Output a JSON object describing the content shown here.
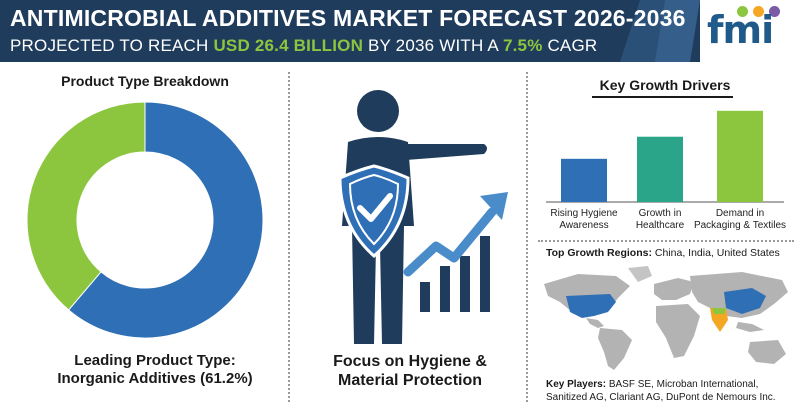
{
  "header": {
    "title": "ANTIMICROBIAL ADDITIVES MARKET FORECAST 2026-2036",
    "subtitle_prefix": "PROJECTED TO REACH ",
    "subtitle_value": "USD 26.4 BILLION",
    "subtitle_mid": " BY 2036 WITH A ",
    "subtitle_rate": "7.5%",
    "subtitle_suffix": " CAGR"
  },
  "logo": {
    "text": "fmi"
  },
  "left_panel": {
    "heading": "Product Type Breakdown",
    "caption_line1": "Leading Product Type:",
    "caption_line2": "Inorganic Additives (61.2%)"
  },
  "center_panel": {
    "caption_line1": "Focus on Hygiene &",
    "caption_line2": "Material Protection"
  },
  "right_panel": {
    "heading": "Key Growth Drivers",
    "regions_label": "Top Growth Regions:",
    "regions_value": " China, India, United States",
    "players_label": "Key Players:",
    "players_value": " BASF SE, Microban International, Sanitized AG, Clariant AG, DuPont de Nemours Inc."
  },
  "colors": {
    "header_bg": "#1f3c5c",
    "highlight_green": "#8cc63f",
    "donut_blue": "#2f6fb5",
    "donut_green": "#8cc63f",
    "bar_blue": "#2f6fb5",
    "bar_teal": "#2aa58a",
    "bar_green": "#8cc63f",
    "figure_navy": "#1f3c5c"
  },
  "chart_data": [
    {
      "type": "pie",
      "title": "Product Type Breakdown",
      "slices": [
        {
          "name": "Inorganic Additives",
          "value": 61.2,
          "color": "#2f6fb5"
        },
        {
          "name": "",
          "value": 38.8,
          "color": "#8cc63f"
        }
      ]
    },
    {
      "type": "bar",
      "title": "Key Growth Drivers",
      "categories": [
        "Rising Hygiene Awareness",
        "Growth in Healthcare",
        "Demand in Packaging & Textiles"
      ],
      "category_lines": [
        [
          "Rising Hygiene",
          "Awareness"
        ],
        [
          "Growth in",
          "Healthcare"
        ],
        [
          "Demand in",
          "Packaging & Textiles"
        ]
      ],
      "values": [
        45,
        68,
        95
      ],
      "colors": [
        "#2f6fb5",
        "#2aa58a",
        "#8cc63f"
      ],
      "ylim": [
        0,
        100
      ]
    }
  ],
  "map_highlights": [
    "United States",
    "China",
    "India"
  ]
}
